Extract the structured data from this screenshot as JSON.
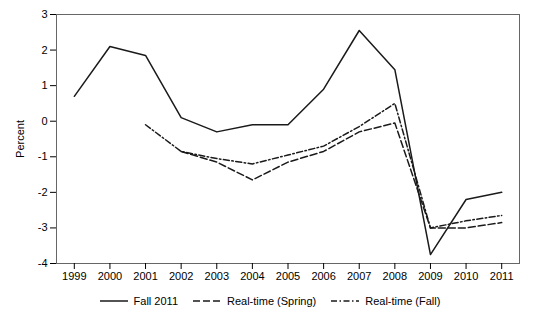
{
  "chart_data": {
    "type": "line",
    "x": [
      1999,
      2000,
      2001,
      2002,
      2003,
      2004,
      2005,
      2006,
      2007,
      2008,
      2009,
      2010,
      2011
    ],
    "series": [
      {
        "name": "Fall 2011",
        "color": "#1a1a1a",
        "line_style": "solid",
        "values": [
          0.7,
          2.1,
          1.85,
          0.1,
          -0.3,
          -0.1,
          -0.1,
          0.9,
          2.55,
          1.45,
          -3.75,
          -2.2,
          -2.0
        ]
      },
      {
        "name": "Real-time (Spring)",
        "color": "#1a1a1a",
        "line_style": "dashed",
        "values": [
          null,
          null,
          null,
          -0.85,
          -1.15,
          -1.65,
          -1.15,
          -0.85,
          -0.3,
          -0.05,
          -3.0,
          -3.0,
          -2.85
        ]
      },
      {
        "name": "Real-time (Fall)",
        "color": "#1a1a1a",
        "line_style": "dashdot",
        "values": [
          null,
          null,
          -0.1,
          -0.85,
          -1.05,
          -1.2,
          -0.95,
          -0.7,
          -0.15,
          0.5,
          -3.0,
          -2.8,
          -2.65
        ]
      }
    ],
    "ylabel": "Percent",
    "xlim": [
      1998.5,
      2011.5
    ],
    "ylim": [
      -4,
      3
    ],
    "xticks": [
      1999,
      2000,
      2001,
      2002,
      2003,
      2004,
      2005,
      2006,
      2007,
      2008,
      2009,
      2010,
      2011
    ],
    "yticks": [
      -4,
      -3,
      -2,
      -1,
      0,
      1,
      2,
      3
    ],
    "grid": false,
    "legend": "bottom"
  }
}
